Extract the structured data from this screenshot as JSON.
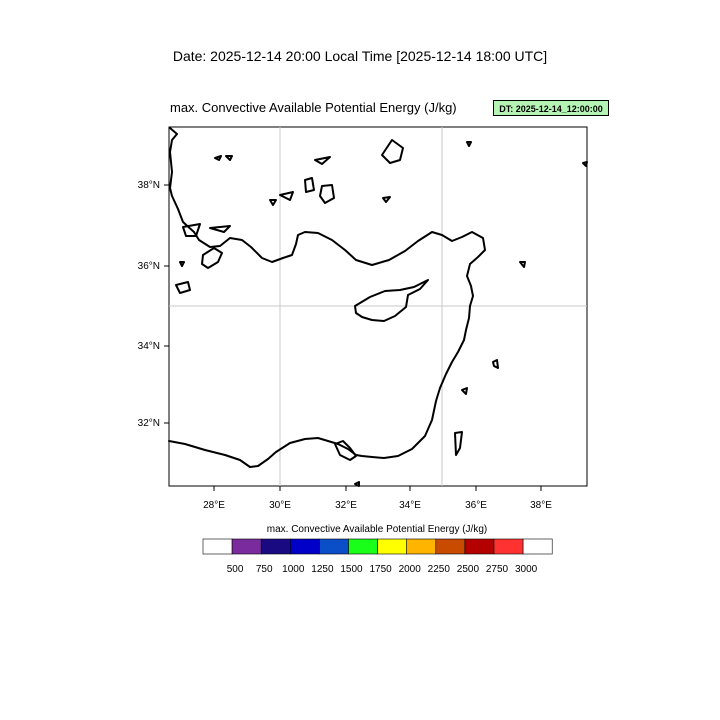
{
  "header": {
    "date_line": "Date: 2025-12-14  20:00 Local Time [2025-12-14  18:00 UTC]",
    "field_title": "max. Convective Available Potential Energy   (J/kg)",
    "dt_badge": "DT: 2025-12-14_12:00:00"
  },
  "map": {
    "lon_range": [
      26.5,
      39.5
    ],
    "lat_range": [
      30.4,
      39.4
    ],
    "x_ticks": [
      "28°E",
      "30°E",
      "32°E",
      "34°E",
      "36°E",
      "38°E"
    ],
    "y_ticks": [
      "32°N",
      "34°N",
      "36°N",
      "38°N"
    ],
    "gridlines": [
      "30°E",
      "35°E",
      "35°N"
    ]
  },
  "colorbar": {
    "title": "max. Convective Available Potential Energy  (J/kg)",
    "labels": [
      "500",
      "750",
      "1000",
      "1250",
      "1500",
      "1750",
      "2000",
      "2250",
      "2500",
      "2750",
      "3000"
    ],
    "colors": [
      "#ffffff",
      "#7a2c9e",
      "#1a0a82",
      "#0000c8",
      "#0a4ec8",
      "#19ff19",
      "#ffff00",
      "#ffb400",
      "#c84b00",
      "#b40000",
      "#ff3232",
      "#ffffff"
    ]
  }
}
